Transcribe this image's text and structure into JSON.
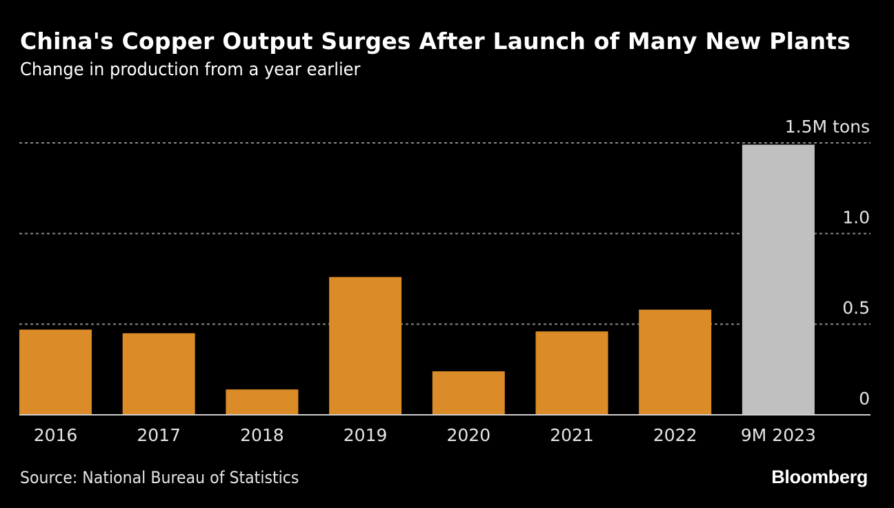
{
  "header": {
    "title": "China's Copper Output Surges After Launch of Many New Plants",
    "subtitle": "Change in production from a year earlier"
  },
  "footer": {
    "source": "Source: National Bureau of Statistics",
    "brand": "Bloomberg"
  },
  "colors": {
    "background": "#000000",
    "bar_primary": "#DB8B28",
    "bar_highlight": "#C0C0C0",
    "gridline": "#8a8a8a",
    "baseline": "#d0d0d0",
    "tick_text": "#e6e6e6"
  },
  "chart_data": {
    "type": "bar",
    "title": "China's Copper Output Surges After Launch of Many New Plants",
    "subtitle": "Change in production from a year earlier",
    "xlabel": "",
    "ylabel": "",
    "unit": "M tons",
    "categories": [
      "2016",
      "2017",
      "2018",
      "2019",
      "2020",
      "2021",
      "2022",
      "9M 2023"
    ],
    "values": [
      0.47,
      0.45,
      0.14,
      0.76,
      0.24,
      0.46,
      0.58,
      1.49
    ],
    "highlight": [
      false,
      false,
      false,
      false,
      false,
      false,
      false,
      true
    ],
    "ylim": [
      0,
      1.5
    ],
    "yticks": [
      {
        "value": 0,
        "label": "0"
      },
      {
        "value": 0.5,
        "label": "0.5"
      },
      {
        "value": 1.0,
        "label": "1.0"
      },
      {
        "value": 1.5,
        "label": "1.5M tons"
      }
    ],
    "grid": true,
    "y_axis_side": "right",
    "legend": "none",
    "source": "National Bureau of Statistics"
  }
}
